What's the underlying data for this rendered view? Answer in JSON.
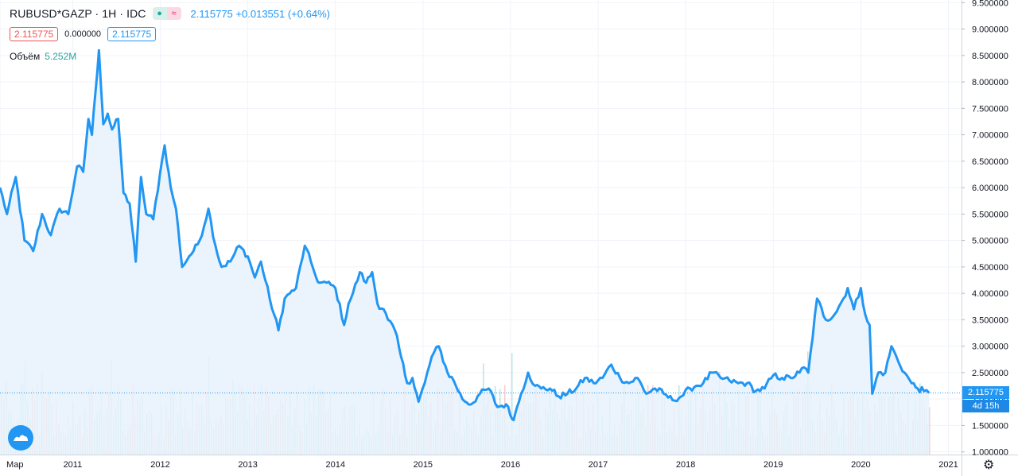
{
  "legend": {
    "symbol": "RUBUSD*GAZP · 1H · IDC",
    "last_price": "2.115775",
    "change": "+0.013551 (+0.64%)",
    "sell_price": "2.115775",
    "spread": "0.000000",
    "buy_price": "2.115775",
    "volume_label": "Объём",
    "volume_value": "5.252M"
  },
  "tags": {
    "price_tag": "2.115775",
    "countdown": "4d 15h"
  },
  "colors": {
    "line": "#2196f3",
    "up_volume": "#26a69a",
    "down_volume": "#ef5350",
    "area": "#e8f2fc"
  },
  "icons": {
    "logo": "tradingview-logo-icon",
    "settings": "gear-icon",
    "indicator_dot": "dot-icon",
    "compare": "approx-icon"
  },
  "chart_data": {
    "type": "line",
    "title": "RUBUSD*GAZP",
    "xlabel": "",
    "ylabel": "",
    "x_range": [
      2010.17,
      2021.15
    ],
    "ylim": [
      0.95,
      9.55
    ],
    "y_ticks": [
      "9.500000",
      "9.000000",
      "8.500000",
      "8.000000",
      "7.500000",
      "7.000000",
      "6.500000",
      "6.000000",
      "5.500000",
      "5.000000",
      "4.500000",
      "4.000000",
      "3.500000",
      "3.000000",
      "2.500000",
      "2.000000",
      "1.500000",
      "1.000000"
    ],
    "y_tick_values": [
      9.5,
      9.0,
      8.5,
      8.0,
      7.5,
      7.0,
      6.5,
      6.0,
      5.5,
      5.0,
      4.5,
      4.0,
      3.5,
      3.0,
      2.5,
      2.0,
      1.5,
      1.0
    ],
    "x_ticks": [
      "Мар",
      "2011",
      "2012",
      "2013",
      "2014",
      "2015",
      "2016",
      "2017",
      "2018",
      "2019",
      "2020",
      "2021"
    ],
    "x_tick_values": [
      2010.17,
      2011.0,
      2012.0,
      2013.0,
      2014.0,
      2015.0,
      2016.0,
      2017.0,
      2018.0,
      2019.0,
      2020.0,
      2021.0
    ],
    "grid": true,
    "series": [
      {
        "x": [
          2010.17,
          2010.25,
          2010.35,
          2010.45,
          2010.55,
          2010.65,
          2010.75,
          2010.85,
          2010.95,
          2011.05,
          2011.12,
          2011.18,
          2011.22,
          2011.26,
          2011.3,
          2011.35,
          2011.4,
          2011.45,
          2011.52,
          2011.58,
          2011.65,
          2011.72,
          2011.78,
          2011.84,
          2011.92,
          2012.0,
          2012.05,
          2012.12,
          2012.18,
          2012.25,
          2012.33,
          2012.38,
          2012.45,
          2012.55,
          2012.63,
          2012.7,
          2012.8,
          2012.9,
          2013.0,
          2013.08,
          2013.15,
          2013.25,
          2013.35,
          2013.42,
          2013.48,
          2013.55,
          2013.65,
          2013.72,
          2013.78,
          2013.82,
          2013.9,
          2014.0,
          2014.1,
          2014.15,
          2014.2,
          2014.28,
          2014.35,
          2014.42,
          2014.48,
          2014.55,
          2014.6,
          2014.68,
          2014.75,
          2014.82,
          2014.88,
          2014.95,
          2015.02,
          2015.1,
          2015.18,
          2015.28,
          2015.35,
          2015.45,
          2015.55,
          2015.65,
          2015.75,
          2015.85,
          2015.95,
          2016.02,
          2016.05,
          2016.12,
          2016.2,
          2016.28,
          2016.35,
          2016.45,
          2016.55,
          2016.65,
          2016.75,
          2016.85,
          2016.95,
          2017.05,
          2017.15,
          2017.25,
          2017.35,
          2017.45,
          2017.55,
          2017.65,
          2017.75,
          2017.85,
          2017.95,
          2018.05,
          2018.12,
          2018.2,
          2018.3,
          2018.4,
          2018.5,
          2018.6,
          2018.7,
          2018.8,
          2018.9,
          2019.0,
          2019.1,
          2019.2,
          2019.3,
          2019.35,
          2019.4,
          2019.5,
          2019.6,
          2019.7,
          2019.8,
          2019.85,
          2019.92,
          2020.0,
          2020.05,
          2020.1,
          2020.13,
          2020.2,
          2020.28,
          2020.35,
          2020.43,
          2020.5,
          2020.58,
          2020.65,
          2020.72,
          2020.78
        ],
        "values": [
          6.0,
          5.5,
          6.2,
          5.0,
          4.8,
          5.5,
          5.1,
          5.6,
          5.5,
          6.4,
          6.3,
          7.3,
          7.0,
          7.8,
          8.6,
          7.2,
          7.4,
          7.1,
          7.3,
          5.9,
          5.7,
          4.6,
          6.2,
          5.5,
          5.4,
          6.3,
          6.8,
          6.0,
          5.6,
          4.5,
          4.7,
          4.8,
          5.0,
          5.6,
          4.9,
          4.5,
          4.6,
          4.9,
          4.7,
          4.3,
          4.6,
          3.9,
          3.3,
          3.9,
          4.0,
          4.1,
          4.9,
          4.6,
          4.3,
          4.2,
          4.2,
          4.1,
          3.4,
          3.8,
          4.0,
          4.4,
          4.2,
          4.4,
          3.8,
          3.7,
          3.5,
          3.3,
          2.8,
          2.3,
          2.4,
          1.95,
          2.3,
          2.8,
          3.0,
          2.5,
          2.35,
          2.0,
          1.9,
          2.1,
          2.2,
          1.85,
          1.9,
          1.62,
          1.7,
          2.1,
          2.5,
          2.25,
          2.2,
          2.2,
          2.05,
          2.1,
          2.2,
          2.4,
          2.3,
          2.4,
          2.65,
          2.4,
          2.3,
          2.4,
          2.1,
          2.2,
          2.1,
          1.98,
          2.05,
          2.2,
          2.25,
          2.3,
          2.5,
          2.4,
          2.35,
          2.3,
          2.3,
          2.15,
          2.2,
          2.45,
          2.4,
          2.4,
          2.5,
          2.6,
          2.5,
          3.9,
          3.5,
          3.6,
          3.9,
          4.1,
          3.7,
          4.1,
          3.6,
          3.4,
          2.1,
          2.5,
          2.5,
          3.0,
          2.7,
          2.5,
          2.3,
          2.2,
          2.15,
          2.115775
        ]
      }
    ]
  }
}
